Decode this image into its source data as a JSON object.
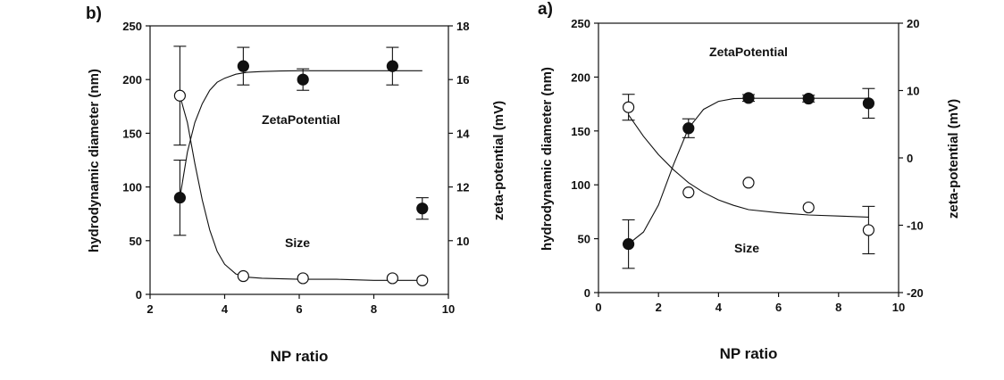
{
  "chart_data": [
    {
      "panel": "b)",
      "type": "scatter",
      "xlabel": "NP ratio",
      "ylabel_left": "hydrodynamic diameter (nm)",
      "ylabel_right": "zeta-potential (mV)",
      "xlim": [
        2,
        10
      ],
      "x_ticks": [
        "2",
        "4",
        "6",
        "8",
        "10"
      ],
      "ylim_left": [
        0,
        250
      ],
      "ylim_right": [
        8,
        18
      ],
      "y_left_ticks": [
        "0",
        "50",
        "100",
        "150",
        "200",
        "250"
      ],
      "y_right_ticks": [
        "10",
        "12",
        "14",
        "16",
        "18"
      ],
      "annotations": {
        "zeta": "ZetaPotential",
        "size": "Size"
      },
      "series": [
        {
          "marker": "filled-circle",
          "axis": "right",
          "x": [
            2.8,
            4.5,
            6.1,
            8.5,
            9.3
          ],
          "y": [
            11.6,
            16.5,
            16.0,
            16.5,
            11.2
          ],
          "err": [
            1.4,
            0.7,
            0.4,
            0.7,
            0.4
          ]
        },
        {
          "marker": "open-circle",
          "axis": "left",
          "x": [
            2.8,
            4.5,
            6.1,
            8.5,
            9.3
          ],
          "y": [
            185,
            17,
            15,
            15,
            13
          ],
          "err": [
            46,
            0,
            0,
            0,
            0
          ]
        }
      ],
      "fits": [
        {
          "axis": "right",
          "x": [
            2.8,
            3.0,
            3.2,
            3.4,
            3.6,
            3.8,
            4.0,
            4.3,
            4.6,
            5.0,
            5.5,
            6.0,
            7.0,
            8.0,
            9.0,
            9.3
          ],
          "y": [
            11.6,
            13.3,
            14.4,
            15.1,
            15.6,
            15.9,
            16.05,
            16.2,
            16.27,
            16.3,
            16.32,
            16.33,
            16.33,
            16.33,
            16.33,
            16.33
          ]
        },
        {
          "axis": "left",
          "x": [
            2.8,
            3.0,
            3.2,
            3.4,
            3.6,
            3.8,
            4.0,
            4.3,
            4.6,
            5.0,
            6.0,
            7.0,
            8.0,
            9.3
          ],
          "y": [
            185,
            160,
            122,
            88,
            60,
            40,
            28,
            19,
            16,
            15,
            14,
            14,
            13,
            13
          ]
        }
      ]
    },
    {
      "panel": "a)",
      "type": "scatter",
      "xlabel": "NP ratio",
      "ylabel_left": "hydrodynamic diameter (nm)",
      "ylabel_right": "zeta-potential (mV)",
      "xlim": [
        0,
        10
      ],
      "x_ticks": [
        "0",
        "2",
        "4",
        "6",
        "8",
        "10"
      ],
      "ylim_left": [
        0,
        250
      ],
      "ylim_right": [
        -20,
        20
      ],
      "y_left_ticks": [
        "0",
        "50",
        "100",
        "150",
        "200",
        "250"
      ],
      "y_right_ticks": [
        "-20",
        "-10",
        "0",
        "10",
        "20"
      ],
      "annotations": {
        "zeta": "ZetaPotential",
        "size": "Size"
      },
      "series": [
        {
          "marker": "filled-circle",
          "axis": "right",
          "x": [
            1,
            3,
            5,
            7,
            9
          ],
          "y": [
            -12.8,
            4.4,
            8.9,
            8.8,
            8.1
          ],
          "err": [
            3.6,
            1.4,
            0.5,
            0.5,
            2.2
          ]
        },
        {
          "marker": "open-circle",
          "axis": "left",
          "x": [
            1,
            3,
            5,
            7,
            9
          ],
          "y": [
            172,
            93,
            102,
            79,
            58
          ],
          "err": [
            12,
            0,
            0,
            0,
            22
          ]
        }
      ],
      "fits": [
        {
          "axis": "right",
          "x": [
            1.0,
            1.5,
            2.0,
            2.5,
            3.0,
            3.5,
            4.0,
            4.5,
            5.0,
            6.0,
            7.0,
            8.0,
            9.0
          ],
          "y": [
            -12.8,
            -11.0,
            -7.0,
            -1.0,
            4.4,
            7.2,
            8.4,
            8.8,
            8.85,
            8.85,
            8.85,
            8.85,
            8.85
          ]
        },
        {
          "axis": "left",
          "x": [
            1.0,
            1.5,
            2.0,
            2.5,
            3.0,
            3.5,
            4.0,
            4.5,
            5.0,
            6.0,
            7.0,
            8.0,
            9.0
          ],
          "y": [
            165,
            145,
            128,
            114,
            102,
            93,
            86,
            81,
            77,
            74,
            72,
            71,
            70
          ]
        }
      ]
    }
  ]
}
